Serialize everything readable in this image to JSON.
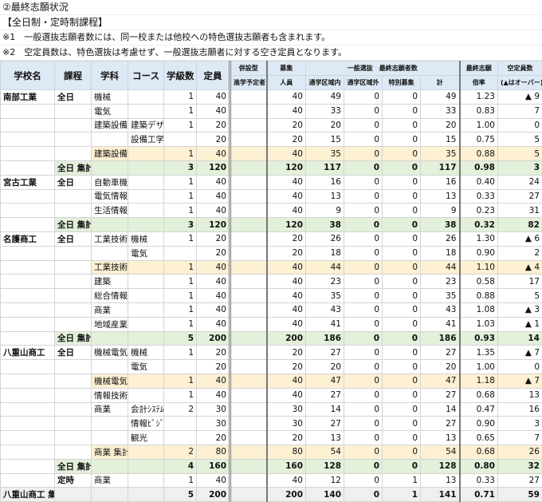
{
  "title": "②最終志願状況",
  "subtitle": "【全日制・定時制課程】",
  "notes": [
    "※1　一般選抜志願者数には、同一校または他校への特色選抜志願者も含まれます。",
    "※2　空定員数は、特色選抜は考慮せず、一般選抜志願者に対する空き定員となります。"
  ],
  "headers": {
    "school": "学校名",
    "course": "課程",
    "dept": "学科",
    "coursename": "コース",
    "classes": "学級数",
    "capacity": "定員",
    "heisetsu_top": "併設型",
    "heisetsu_bottom": "進学予定者",
    "boshu_top": "募集",
    "boshu_bottom": "人員",
    "general_top": "一般選抜　最終志願者数",
    "inner": "通学区域内",
    "outer": "通学区域外",
    "special": "特別募集",
    "total": "計",
    "ratio_top": "最終志願",
    "ratio_bottom": "倍率",
    "vacancy_top": "空定員数",
    "vacancy_bottom": "(▲はオーバー)"
  },
  "colors": {
    "header": "#dde9f5",
    "subtotal": "#fdf0d3",
    "total": "#e3f0da",
    "grand_total": "#efefef"
  },
  "rows": [
    {
      "type": "normal",
      "top": true,
      "cells": [
        "南部工業",
        "全日",
        "機械",
        "",
        "1",
        "40",
        "",
        "40",
        "49",
        "0",
        "0",
        "49",
        "1.23",
        "▲ 9"
      ]
    },
    {
      "type": "normal",
      "cells": [
        "",
        "",
        "電気",
        "",
        "1",
        "40",
        "",
        "40",
        "33",
        "0",
        "0",
        "33",
        "0.83",
        "7"
      ]
    },
    {
      "type": "normal",
      "cells": [
        "",
        "",
        "建築設備",
        "建築デザ",
        "1",
        "20",
        "",
        "20",
        "20",
        "0",
        "0",
        "20",
        "1.00",
        "0"
      ]
    },
    {
      "type": "normal",
      "cells": [
        "",
        "",
        "",
        "設備工学",
        "",
        "20",
        "",
        "20",
        "15",
        "0",
        "0",
        "15",
        "0.75",
        "5"
      ]
    },
    {
      "type": "sub",
      "cells": [
        "",
        "",
        "建築設備 集計",
        "",
        "1",
        "40",
        "",
        "40",
        "35",
        "0",
        "0",
        "35",
        "0.88",
        "5"
      ]
    },
    {
      "type": "total",
      "cells": [
        "",
        "全日 集計",
        "",
        "",
        "3",
        "120",
        "",
        "120",
        "117",
        "0",
        "0",
        "117",
        "0.98",
        "3"
      ]
    },
    {
      "type": "normal",
      "top": true,
      "cells": [
        "宮古工業",
        "全日",
        "自動車機械ｼｽﾃﾑ",
        "",
        "1",
        "40",
        "",
        "40",
        "16",
        "0",
        "0",
        "16",
        "0.40",
        "24"
      ]
    },
    {
      "type": "normal",
      "cells": [
        "",
        "",
        "電気情報",
        "",
        "1",
        "40",
        "",
        "40",
        "13",
        "0",
        "0",
        "13",
        "0.33",
        "27"
      ]
    },
    {
      "type": "normal",
      "cells": [
        "",
        "",
        "生活情報",
        "",
        "1",
        "40",
        "",
        "40",
        "9",
        "0",
        "0",
        "9",
        "0.23",
        "31"
      ]
    },
    {
      "type": "total",
      "cells": [
        "",
        "全日 集計",
        "",
        "",
        "3",
        "120",
        "",
        "120",
        "38",
        "0",
        "0",
        "38",
        "0.32",
        "82"
      ]
    },
    {
      "type": "normal",
      "top": true,
      "cells": [
        "名護商工",
        "全日",
        "工業技術",
        "機械",
        "1",
        "20",
        "",
        "20",
        "26",
        "0",
        "0",
        "26",
        "1.30",
        "▲ 6"
      ]
    },
    {
      "type": "normal",
      "cells": [
        "",
        "",
        "",
        "電気",
        "",
        "20",
        "",
        "20",
        "18",
        "0",
        "0",
        "18",
        "0.90",
        "2"
      ]
    },
    {
      "type": "sub",
      "cells": [
        "",
        "",
        "工業技術 集計",
        "",
        "1",
        "40",
        "",
        "40",
        "44",
        "0",
        "0",
        "44",
        "1.10",
        "▲ 4"
      ]
    },
    {
      "type": "normal",
      "cells": [
        "",
        "",
        "建築",
        "",
        "1",
        "40",
        "",
        "40",
        "23",
        "0",
        "0",
        "23",
        "0.58",
        "17"
      ]
    },
    {
      "type": "normal",
      "cells": [
        "",
        "",
        "総合情報",
        "",
        "1",
        "40",
        "",
        "40",
        "35",
        "0",
        "0",
        "35",
        "0.88",
        "5"
      ]
    },
    {
      "type": "normal",
      "cells": [
        "",
        "",
        "商業",
        "",
        "1",
        "40",
        "",
        "40",
        "43",
        "0",
        "0",
        "43",
        "1.08",
        "▲ 3"
      ]
    },
    {
      "type": "normal",
      "cells": [
        "",
        "",
        "地域産業",
        "",
        "1",
        "40",
        "",
        "40",
        "41",
        "0",
        "0",
        "41",
        "1.03",
        "▲ 1"
      ]
    },
    {
      "type": "total",
      "cells": [
        "",
        "全日 集計",
        "",
        "",
        "5",
        "200",
        "",
        "200",
        "186",
        "0",
        "0",
        "186",
        "0.93",
        "14"
      ]
    },
    {
      "type": "normal",
      "top": true,
      "cells": [
        "八重山商工",
        "全日",
        "機械電気",
        "機械",
        "1",
        "20",
        "",
        "20",
        "27",
        "0",
        "0",
        "27",
        "1.35",
        "▲ 7"
      ]
    },
    {
      "type": "normal",
      "cells": [
        "",
        "",
        "",
        "電気",
        "",
        "20",
        "",
        "20",
        "20",
        "0",
        "0",
        "20",
        "1.00",
        "0"
      ]
    },
    {
      "type": "sub",
      "cells": [
        "",
        "",
        "機械電気 集計",
        "",
        "1",
        "40",
        "",
        "40",
        "47",
        "0",
        "0",
        "47",
        "1.18",
        "▲ 7"
      ]
    },
    {
      "type": "normal",
      "cells": [
        "",
        "",
        "情報技術",
        "",
        "1",
        "40",
        "",
        "40",
        "27",
        "0",
        "0",
        "27",
        "0.68",
        "13"
      ]
    },
    {
      "type": "normal",
      "cells": [
        "",
        "",
        "商業",
        "会計ｼｽﾃﾑ",
        "2",
        "30",
        "",
        "30",
        "14",
        "0",
        "0",
        "14",
        "0.47",
        "16"
      ]
    },
    {
      "type": "normal",
      "cells": [
        "",
        "",
        "",
        "情報ﾋﾞｼﾞ",
        "",
        "30",
        "",
        "30",
        "27",
        "0",
        "0",
        "27",
        "0.90",
        "3"
      ]
    },
    {
      "type": "normal",
      "cells": [
        "",
        "",
        "",
        "観光",
        "",
        "20",
        "",
        "20",
        "13",
        "0",
        "0",
        "13",
        "0.65",
        "7"
      ]
    },
    {
      "type": "sub",
      "cells": [
        "",
        "",
        "商業 集計",
        "",
        "2",
        "80",
        "",
        "80",
        "54",
        "0",
        "0",
        "54",
        "0.68",
        "26"
      ]
    },
    {
      "type": "total",
      "cells": [
        "",
        "全日 集計",
        "",
        "",
        "4",
        "160",
        "",
        "160",
        "128",
        "0",
        "0",
        "128",
        "0.80",
        "32"
      ]
    },
    {
      "type": "normal",
      "cells": [
        "",
        "定時",
        "商業",
        "",
        "1",
        "40",
        "",
        "40",
        "12",
        "0",
        "1",
        "13",
        "0.33",
        "27"
      ]
    },
    {
      "type": "grand",
      "cells": [
        "八重山商工 集計",
        "",
        "",
        "",
        "5",
        "200",
        "",
        "200",
        "140",
        "0",
        "1",
        "141",
        "0.71",
        "59"
      ]
    }
  ]
}
